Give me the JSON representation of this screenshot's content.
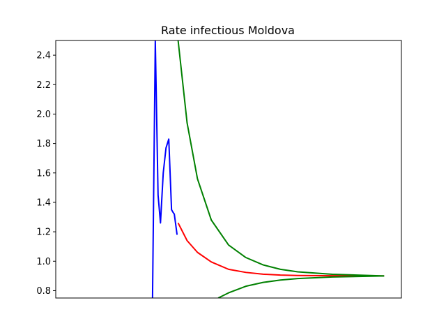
{
  "chart_data": {
    "type": "line",
    "title": "Rate infectious Moldova",
    "xlabel": "",
    "ylabel": "",
    "xlim": [
      0,
      100
    ],
    "ylim": [
      0.75,
      2.5
    ],
    "x_ticks_shown": false,
    "yticks": [
      "0.8",
      "1.0",
      "1.2",
      "1.4",
      "1.6",
      "1.8",
      "2.0",
      "2.2",
      "2.4"
    ],
    "grid": false,
    "series": [
      {
        "color": "#0000ff",
        "x": [
          28.0,
          28.8,
          29.6,
          30.3,
          31.1,
          31.9,
          32.7,
          33.5,
          34.0,
          34.3,
          35.1
        ],
        "y": [
          0.75,
          2.5,
          1.45,
          1.26,
          1.6,
          1.77,
          1.83,
          1.35,
          1.33,
          1.32,
          1.18
        ]
      },
      {
        "color": "#ff0000",
        "x": [
          35.4,
          38,
          41,
          45,
          50,
          55,
          60,
          65,
          70,
          80,
          95
        ],
        "y": [
          1.26,
          1.14,
          1.06,
          0.995,
          0.945,
          0.924,
          0.912,
          0.906,
          0.903,
          0.901,
          0.9
        ]
      },
      {
        "color": "#008000",
        "x": [
          35.4,
          38,
          41,
          45,
          50,
          55,
          60,
          65,
          70,
          80,
          95
        ],
        "y": [
          2.5,
          1.94,
          1.56,
          1.28,
          1.11,
          1.025,
          0.975,
          0.945,
          0.928,
          0.911,
          0.9
        ]
      },
      {
        "color": "#008000",
        "x": [
          47,
          50,
          55,
          60,
          65,
          70,
          80,
          95
        ],
        "y": [
          0.75,
          0.785,
          0.83,
          0.856,
          0.872,
          0.882,
          0.893,
          0.9
        ]
      }
    ]
  }
}
